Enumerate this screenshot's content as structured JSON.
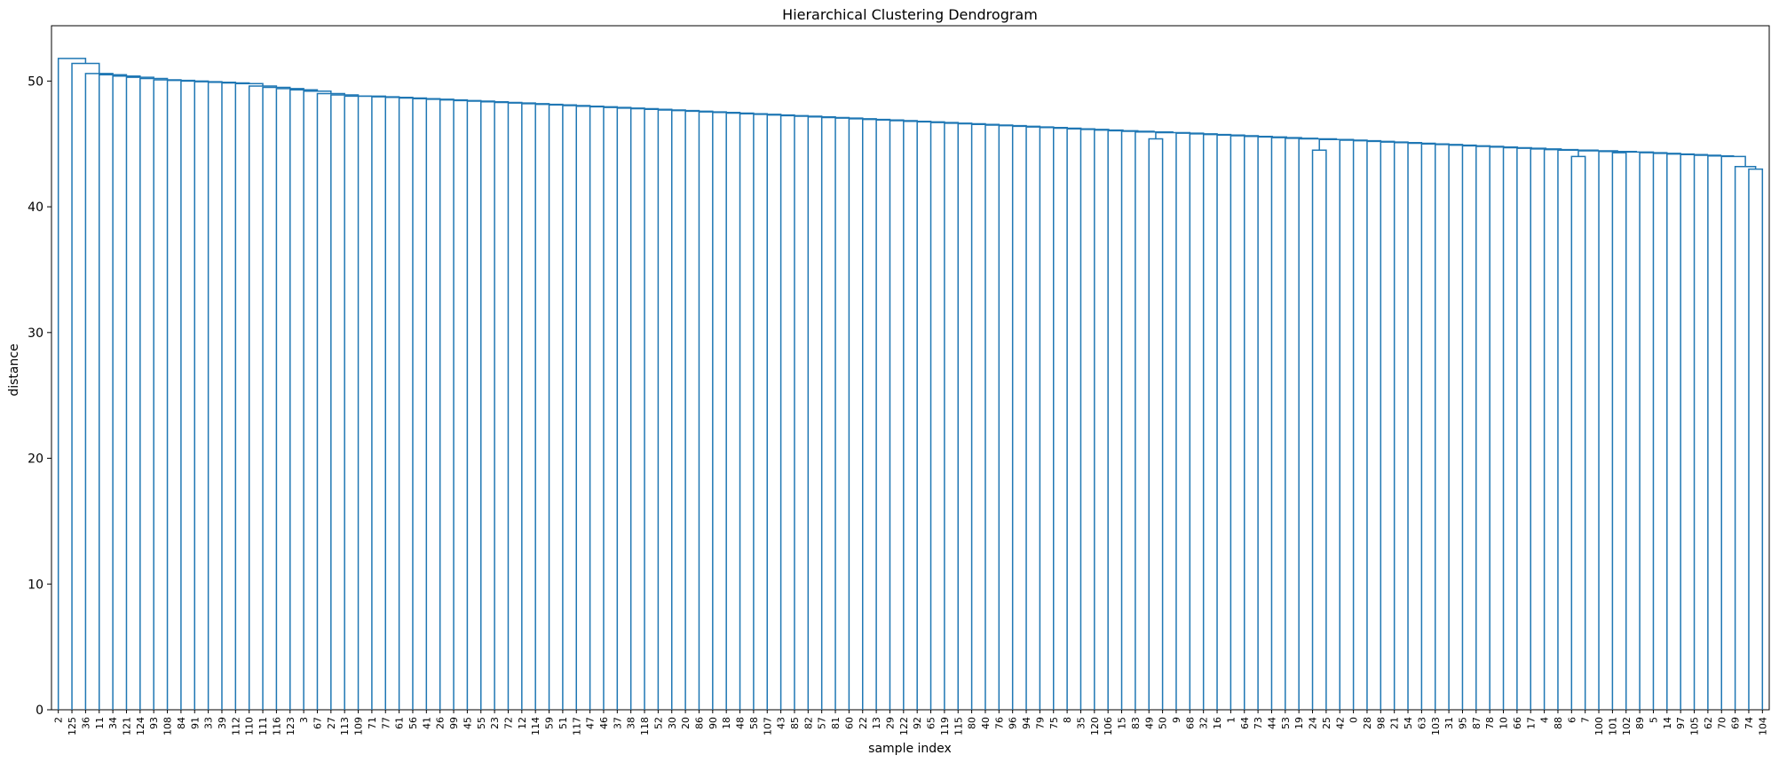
{
  "chart_data": {
    "type": "dendrogram",
    "title": "Hierarchical Clustering Dendrogram",
    "xlabel": "sample index",
    "ylabel": "distance",
    "ylim": [
      0,
      54.4
    ],
    "yticks": [
      0,
      10,
      20,
      30,
      40,
      50
    ],
    "grid": false,
    "line_color": "#1f77b4",
    "leaf_labels": [
      "2",
      "125",
      "36",
      "11",
      "34",
      "121",
      "124",
      "93",
      "108",
      "84",
      "91",
      "33",
      "39",
      "112",
      "110",
      "111",
      "116",
      "123",
      "3",
      "67",
      "27",
      "113",
      "109",
      "71",
      "77",
      "61",
      "56",
      "41",
      "26",
      "99",
      "45",
      "55",
      "23",
      "72",
      "12",
      "114",
      "59",
      "51",
      "117",
      "47",
      "46",
      "37",
      "38",
      "118",
      "52",
      "30",
      "20",
      "86",
      "90",
      "18",
      "48",
      "58",
      "107",
      "43",
      "85",
      "82",
      "57",
      "81",
      "60",
      "22",
      "13",
      "29",
      "122",
      "92",
      "65",
      "119",
      "115",
      "80",
      "40",
      "76",
      "96",
      "94",
      "79",
      "75",
      "8",
      "35",
      "120",
      "106",
      "15",
      "83",
      "49",
      "50",
      "9",
      "68",
      "32",
      "16",
      "1",
      "64",
      "73",
      "44",
      "53",
      "19",
      "24",
      "25",
      "42",
      "0",
      "28",
      "98",
      "21",
      "54",
      "63",
      "103",
      "31",
      "95",
      "87",
      "78",
      "10",
      "66",
      "17",
      "4",
      "88",
      "6",
      "7",
      "100",
      "101",
      "102",
      "89",
      "5",
      "14",
      "97",
      "105",
      "62",
      "70",
      "69",
      "74",
      "104"
    ],
    "merge_heights_chain": [
      51.8,
      51.4,
      50.6,
      50.5,
      50.4,
      50.3,
      50.2,
      50.1,
      50.05,
      50.0,
      49.95,
      49.9,
      49.85,
      49.8,
      49.6,
      49.5,
      49.4,
      49.3,
      49.2,
      49.0,
      48.9,
      48.8,
      48.7,
      48.6,
      48.5,
      48.4,
      48.3,
      48.2,
      48.1,
      47.8,
      47.7,
      47.6,
      47.55,
      47.5,
      47.45,
      47.4,
      47.38,
      47.35,
      47.3,
      47.25,
      47.2,
      47.18,
      47.15,
      47.1,
      47.0,
      46.95,
      46.9,
      46.88,
      46.85,
      46.83,
      46.8,
      46.75,
      46.72,
      46.7,
      46.68,
      46.66,
      46.64,
      46.62,
      46.6,
      46.55,
      46.5,
      46.45,
      46.4,
      46.35,
      46.3,
      46.25,
      46.2,
      46.15,
      46.12,
      46.1,
      46.05,
      46.0,
      45.8,
      45.7,
      45.6,
      45.55,
      45.5,
      45.45,
      45.4,
      45.35,
      45.3,
      45.25,
      45.2,
      45.15,
      45.1,
      45.08,
      45.05,
      45.02,
      45.0,
      44.95,
      44.9,
      44.85,
      44.8,
      44.75,
      44.7,
      44.65,
      44.6,
      44.55,
      44.5,
      44.45,
      44.4,
      44.3,
      44.2,
      44.0
    ],
    "sub_merges": [
      {
        "left": "49",
        "right": "50",
        "height": 45.4
      },
      {
        "left": "24",
        "right": "25",
        "height": 44.5
      },
      {
        "left": "6",
        "right": "7",
        "height": 44.0
      },
      {
        "left": "101",
        "right": "102",
        "height": 44.3
      },
      {
        "left": "74",
        "right": "104",
        "height": 43.0
      },
      {
        "left": "69",
        "right": "[74,104]",
        "height": 43.2
      }
    ]
  }
}
